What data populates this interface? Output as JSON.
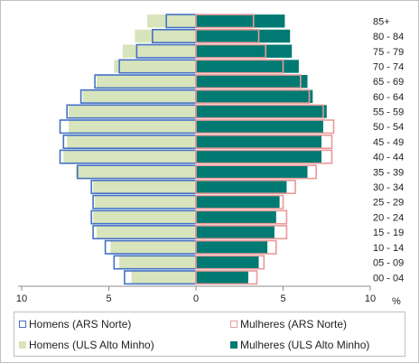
{
  "chart_data": {
    "type": "bar",
    "orientation": "horizontal",
    "categories": [
      "00 - 04",
      "05 - 09",
      "10 - 14",
      "15 - 19",
      "20 - 24",
      "25 - 29",
      "30 - 34",
      "35 - 39",
      "40 - 44",
      "45 - 49",
      "50 - 54",
      "55 - 59",
      "60 - 64",
      "65 - 69",
      "70 - 74",
      "75 - 79",
      "80 - 84",
      "85+"
    ],
    "series": [
      {
        "name": "Homens (ARS Norte)",
        "side": "left",
        "style": "outline",
        "color": "#4472c4",
        "values": [
          4.1,
          4.7,
          5.2,
          5.9,
          6.0,
          5.9,
          6.0,
          6.8,
          7.8,
          7.6,
          7.8,
          7.4,
          6.6,
          5.8,
          4.4,
          3.4,
          2.5,
          1.7
        ]
      },
      {
        "name": "Mulheres (ARS Norte)",
        "side": "right",
        "style": "outline",
        "color": "#e89a9a",
        "values": [
          3.5,
          3.9,
          4.6,
          5.2,
          5.2,
          5.0,
          5.7,
          6.9,
          7.8,
          7.8,
          7.9,
          7.3,
          6.5,
          6.0,
          5.0,
          4.0,
          3.6,
          3.3
        ]
      },
      {
        "name": "Homens (ULS Alto Minho)",
        "side": "left",
        "style": "fill",
        "color": "#d7e4bc",
        "values": [
          3.7,
          4.4,
          4.9,
          5.7,
          5.9,
          5.8,
          5.9,
          6.9,
          7.6,
          7.4,
          7.3,
          7.3,
          6.5,
          5.7,
          4.7,
          4.2,
          3.5,
          2.8
        ]
      },
      {
        "name": "Mulheres (ULS Alto Minho)",
        "side": "right",
        "style": "fill",
        "color": "#007a72",
        "values": [
          3.0,
          3.6,
          4.1,
          4.5,
          4.6,
          4.8,
          5.2,
          6.4,
          7.2,
          7.2,
          7.3,
          7.5,
          6.7,
          6.4,
          5.9,
          5.5,
          5.4,
          5.1
        ]
      }
    ],
    "x_ticks": [
      "10",
      "5",
      "0",
      "5",
      "10"
    ],
    "x_range": [
      -10,
      10
    ],
    "xlabel": "%",
    "legend_position": "bottom",
    "gridlines": false
  }
}
